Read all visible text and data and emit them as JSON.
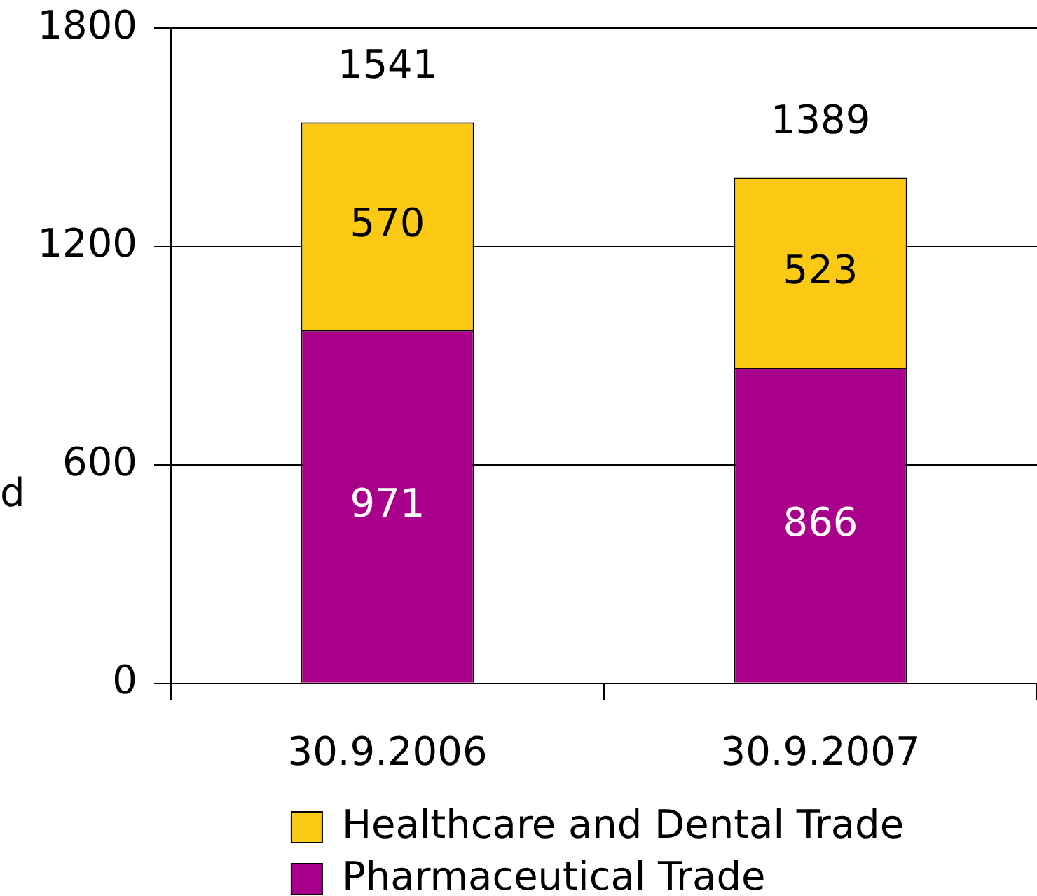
{
  "chart_data": {
    "type": "bar",
    "ylabel": "d",
    "categories": [
      "30.9.2006",
      "30.9.2007"
    ],
    "series": [
      {
        "name": "Pharmaceutical Trade",
        "color": "#a8008a",
        "values": [
          971,
          866
        ]
      },
      {
        "name": "Healthcare and Dental Trade",
        "color": "#fcc915",
        "values": [
          570,
          523
        ]
      }
    ],
    "stacked": true,
    "ylim": [
      0,
      1800
    ],
    "yticks": [
      0,
      600,
      1200,
      1800
    ],
    "grid": "y",
    "legend": "bottom",
    "data_labels": true,
    "totals": [
      "1541",
      "1389"
    ]
  }
}
